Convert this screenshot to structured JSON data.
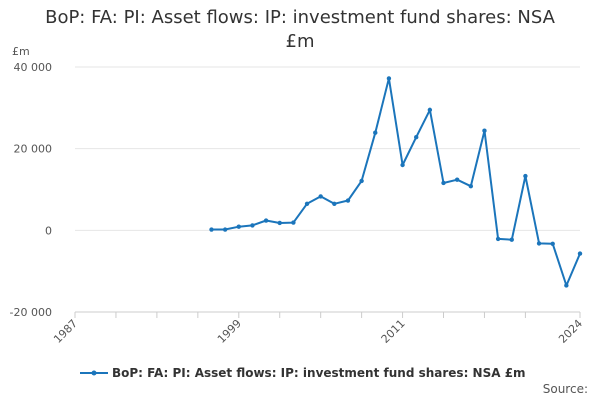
{
  "chart_data": {
    "type": "line",
    "title": "BoP: FA: PI: Asset flows: IP: investment fund shares: NSA £m",
    "ylabel": "£m",
    "xlabel": "",
    "xlim": [
      1987,
      2024
    ],
    "ylim": [
      -20000,
      40000
    ],
    "x_ticks": [
      1987,
      1999,
      2011,
      2024
    ],
    "x_minor_ticks": [
      1987,
      1990,
      1993,
      1996,
      1999,
      2002,
      2005,
      2008,
      2011,
      2014,
      2017,
      2020,
      2024
    ],
    "y_ticks": [
      {
        "value": -20000,
        "label": "-20 000"
      },
      {
        "value": 0,
        "label": "0"
      },
      {
        "value": 20000,
        "label": "20 000"
      },
      {
        "value": 40000,
        "label": "40 000"
      }
    ],
    "grid": true,
    "legend_position": "bottom",
    "series": [
      {
        "name": "BoP: FA: PI: Asset flows: IP: investment fund shares: NSA £m",
        "color": "#1b75bb",
        "x": [
          1997,
          1998,
          1999,
          2000,
          2001,
          2002,
          2003,
          2004,
          2005,
          2006,
          2007,
          2008,
          2009,
          2010,
          2011,
          2012,
          2013,
          2014,
          2015,
          2016,
          2017,
          2018,
          2019,
          2020,
          2021,
          2022,
          2023,
          2024
        ],
        "values": [
          200,
          200,
          900,
          1200,
          2400,
          1800,
          1900,
          6500,
          8300,
          6500,
          7300,
          12100,
          23900,
          37200,
          16000,
          22800,
          29500,
          11600,
          12400,
          10800,
          24400,
          -2100,
          -2300,
          13300,
          -3200,
          -3300,
          -13500,
          -5700
        ]
      }
    ]
  },
  "source_label": "Source:"
}
